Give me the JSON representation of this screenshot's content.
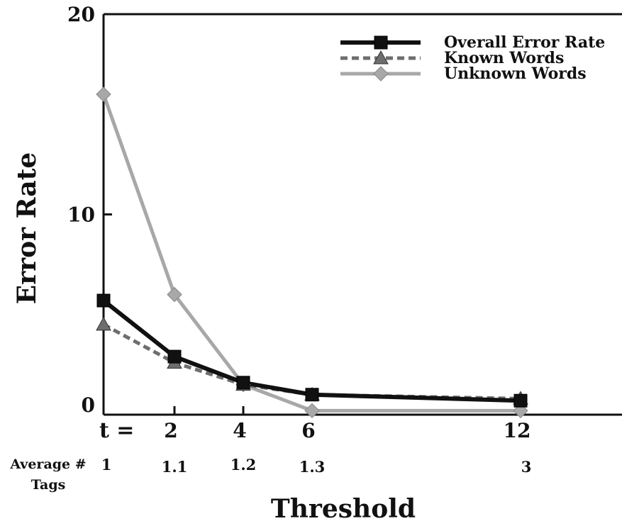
{
  "chart_data": {
    "type": "line",
    "xlabel": "Threshold",
    "ylabel": "Error Rate",
    "ylim": [
      0,
      20
    ],
    "y_ticks": [
      "0",
      "10",
      "20"
    ],
    "x": [
      1,
      2,
      4,
      6,
      12
    ],
    "x_tick_labels": [
      "2",
      "4",
      "6",
      "12"
    ],
    "x_prefix_label": "t =",
    "secondary_axis": {
      "label": "Average # Tags",
      "values": [
        "1",
        "1.1",
        "1.2",
        "1.3",
        "3"
      ]
    },
    "legend_position": "top-right",
    "grid": false,
    "series": [
      {
        "name": "Overall Error Rate",
        "values": [
          5.7,
          2.9,
          1.6,
          1.0,
          0.7
        ],
        "color": "#111111",
        "style": "solid",
        "marker": "square"
      },
      {
        "name": "Known Words",
        "values": [
          4.5,
          2.6,
          1.5,
          1.0,
          0.8
        ],
        "color": "#6e6e6e",
        "style": "dashed",
        "marker": "triangle"
      },
      {
        "name": "Unknown Words",
        "values": [
          16.0,
          6.0,
          1.5,
          0.2,
          0.2
        ],
        "color": "#a8a8a8",
        "style": "solid",
        "marker": "diamond"
      }
    ]
  }
}
